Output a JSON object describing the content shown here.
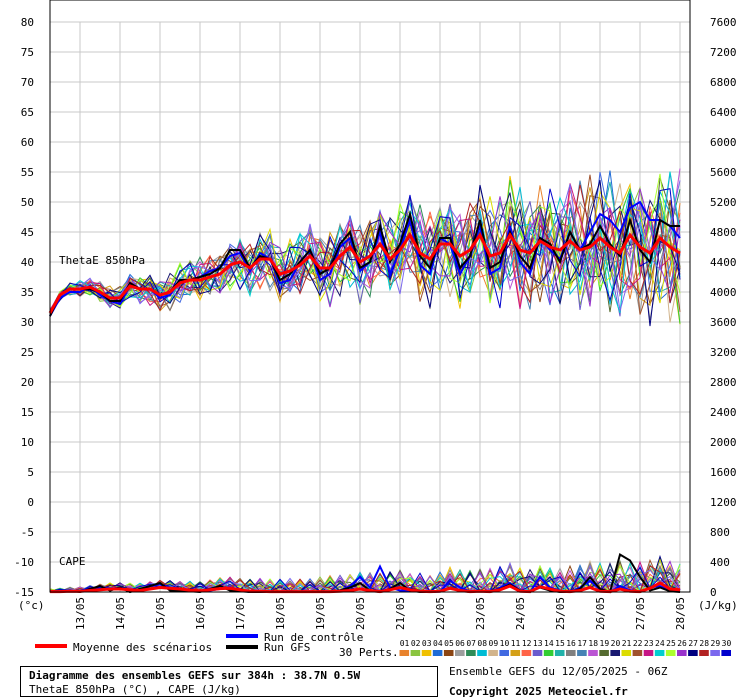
{
  "chart_data": {
    "type": "line",
    "title": "Diagramme des ensembles GEFS sur 384h : 38.7N 0.5W",
    "subtitle": "ThetaE 850hPa (°C) , CAPE (J/kg)",
    "left_axis_unit": "(°c)",
    "right_axis_unit": "(J/kg)",
    "left_ticks": [
      80,
      75,
      70,
      65,
      60,
      55,
      50,
      45,
      40,
      35,
      30,
      25,
      20,
      15,
      10,
      5,
      0,
      -5,
      -10,
      -15
    ],
    "right_ticks": [
      7600,
      7200,
      6800,
      6400,
      6000,
      5600,
      5200,
      4800,
      4400,
      4000,
      3600,
      3200,
      2800,
      2400,
      2000,
      1600,
      1200,
      800,
      400,
      0
    ],
    "ylim": [
      -15,
      80
    ],
    "cape_lim": [
      0,
      7600
    ],
    "x_labels": [
      "13/05",
      "14/05",
      "15/05",
      "16/05",
      "17/05",
      "18/05",
      "19/05",
      "20/05",
      "21/05",
      "22/05",
      "23/05",
      "24/05",
      "25/05",
      "26/05",
      "27/05",
      "28/05"
    ],
    "x_days": [
      1,
      2,
      3,
      4,
      5,
      6,
      7,
      8,
      9,
      10,
      11,
      12,
      13,
      14,
      15,
      16
    ],
    "x_start_hour": 6,
    "x_step_hours": 6,
    "panel_labels": {
      "thetae": "ThetaE 850hPa",
      "cape": "CAPE"
    },
    "thetae": {
      "mean": [
        31.5,
        34.5,
        35.5,
        35.5,
        35.8,
        35,
        34,
        34,
        36,
        35.5,
        35.5,
        34.5,
        35,
        36.5,
        37,
        37,
        37.5,
        38,
        39.5,
        40,
        39,
        40.5,
        40.5,
        38,
        38.5,
        39.5,
        41,
        39,
        39,
        41,
        42.5,
        40,
        41,
        43,
        40.5,
        42,
        44.5,
        41.5,
        40.5,
        43,
        43,
        41,
        42,
        44.5,
        41,
        41.5,
        44.5,
        42,
        41.5,
        43.5,
        42.5,
        42,
        43.5,
        42,
        42.5,
        44,
        42.5,
        41.5,
        44.5,
        42.5,
        41.5,
        44,
        42.5,
        41.5
      ],
      "control": [
        31,
        34,
        35,
        35,
        36,
        34.5,
        33.5,
        33,
        36,
        35.5,
        35.5,
        34,
        34.5,
        37,
        37,
        37.5,
        38.5,
        39,
        41,
        41.5,
        38.5,
        41.5,
        40.5,
        36.5,
        37,
        40,
        42,
        37,
        38,
        42.5,
        44,
        38.5,
        40,
        45,
        38,
        42,
        47,
        39.5,
        38,
        44,
        43,
        38,
        41,
        46,
        38,
        39,
        46,
        40,
        38,
        44,
        42,
        40.5,
        45,
        42,
        45,
        48,
        47,
        45,
        49,
        50,
        47,
        47,
        46,
        44
      ],
      "gfs": [
        31,
        34.5,
        35.5,
        35.5,
        35.5,
        35,
        33.5,
        33.5,
        36.5,
        35.5,
        35.5,
        34.5,
        35,
        37,
        37,
        37.5,
        38,
        39,
        42,
        42,
        39,
        41,
        40.5,
        37,
        38,
        40,
        42,
        38,
        39,
        43,
        45,
        39,
        40,
        46,
        40,
        43,
        48,
        41,
        39,
        44,
        44,
        39,
        41,
        47,
        39,
        40,
        45,
        41,
        39,
        44,
        43,
        40,
        45,
        42,
        43,
        46,
        43,
        41,
        47,
        42,
        40,
        47,
        46,
        46
      ]
    },
    "cape": {
      "mean": [
        5,
        5,
        10,
        8,
        20,
        30,
        40,
        40,
        30,
        20,
        40,
        60,
        50,
        40,
        25,
        15,
        30,
        45,
        50,
        30,
        10,
        10,
        5,
        5,
        5,
        5,
        5,
        5,
        5,
        10,
        20,
        40,
        20,
        5,
        30,
        60,
        30,
        10,
        5,
        10,
        50,
        20,
        5,
        10,
        5,
        30,
        80,
        10,
        5,
        70,
        40,
        10,
        5,
        20,
        60,
        10,
        5,
        40,
        10,
        5,
        50,
        120,
        40,
        30
      ],
      "control": [
        0,
        5,
        10,
        20,
        40,
        60,
        50,
        40,
        30,
        20,
        80,
        100,
        60,
        30,
        10,
        5,
        20,
        40,
        60,
        20,
        0,
        0,
        0,
        0,
        0,
        0,
        0,
        0,
        0,
        20,
        80,
        200,
        60,
        340,
        60,
        20,
        20,
        10,
        0,
        5,
        150,
        60,
        10,
        20,
        0,
        60,
        120,
        20,
        0,
        200,
        60,
        20,
        0,
        60,
        150,
        40,
        0,
        80,
        20,
        0,
        60,
        80,
        20,
        10
      ],
      "gfs": [
        0,
        0,
        20,
        0,
        40,
        80,
        20,
        60,
        0,
        40,
        80,
        120,
        20,
        20,
        10,
        0,
        40,
        80,
        20,
        10,
        0,
        0,
        0,
        0,
        0,
        0,
        0,
        0,
        0,
        20,
        60,
        120,
        20,
        0,
        40,
        120,
        20,
        0,
        0,
        10,
        60,
        20,
        0,
        20,
        0,
        40,
        100,
        20,
        0,
        60,
        20,
        0,
        0,
        40,
        200,
        40,
        0,
        500,
        420,
        200,
        20,
        60,
        10,
        0
      ]
    },
    "perturbation_colors": [
      "#e8822c",
      "#8ac43f",
      "#f0c000",
      "#1e6bd6",
      "#8b4513",
      "#9e9e9e",
      "#2e8b57",
      "#00bcd4",
      "#d2b48c",
      "#4169e1",
      "#d4a017",
      "#ff6347",
      "#6a5acd",
      "#32cd32",
      "#20b2aa",
      "#808080",
      "#4682b4",
      "#ba55d3",
      "#556b2f",
      "#191970",
      "#dcdc00",
      "#a0522d",
      "#c71585",
      "#00ced1",
      "#adff2f",
      "#9932cc",
      "#000080",
      "#b22222",
      "#7b68ee",
      "#0000cd"
    ]
  },
  "legend": {
    "mean_label": "Moyenne des scénarios",
    "control_label": "Run de contrôle",
    "gfs_label": "Run GFS",
    "perts_label": "30 Perts.",
    "pert_numbers": [
      "01",
      "02",
      "03",
      "04",
      "05",
      "06",
      "07",
      "08",
      "09",
      "10",
      "11",
      "12",
      "13",
      "14",
      "15",
      "16",
      "17",
      "18",
      "19",
      "20",
      "21",
      "22",
      "23",
      "24",
      "25",
      "26",
      "27",
      "28",
      "29",
      "30"
    ],
    "colors": {
      "mean": "#ff0000",
      "control": "#0000ff",
      "gfs": "#000000"
    }
  },
  "footer": {
    "title": "Diagramme des ensembles GEFS sur 384h : 38.7N 0.5W",
    "subtitle": "ThetaE 850hPa (°C) , CAPE (J/kg)",
    "run_info": "Ensemble GEFS du 12/05/2025 - 06Z",
    "copyright": "Copyright 2025 Meteociel.fr"
  }
}
